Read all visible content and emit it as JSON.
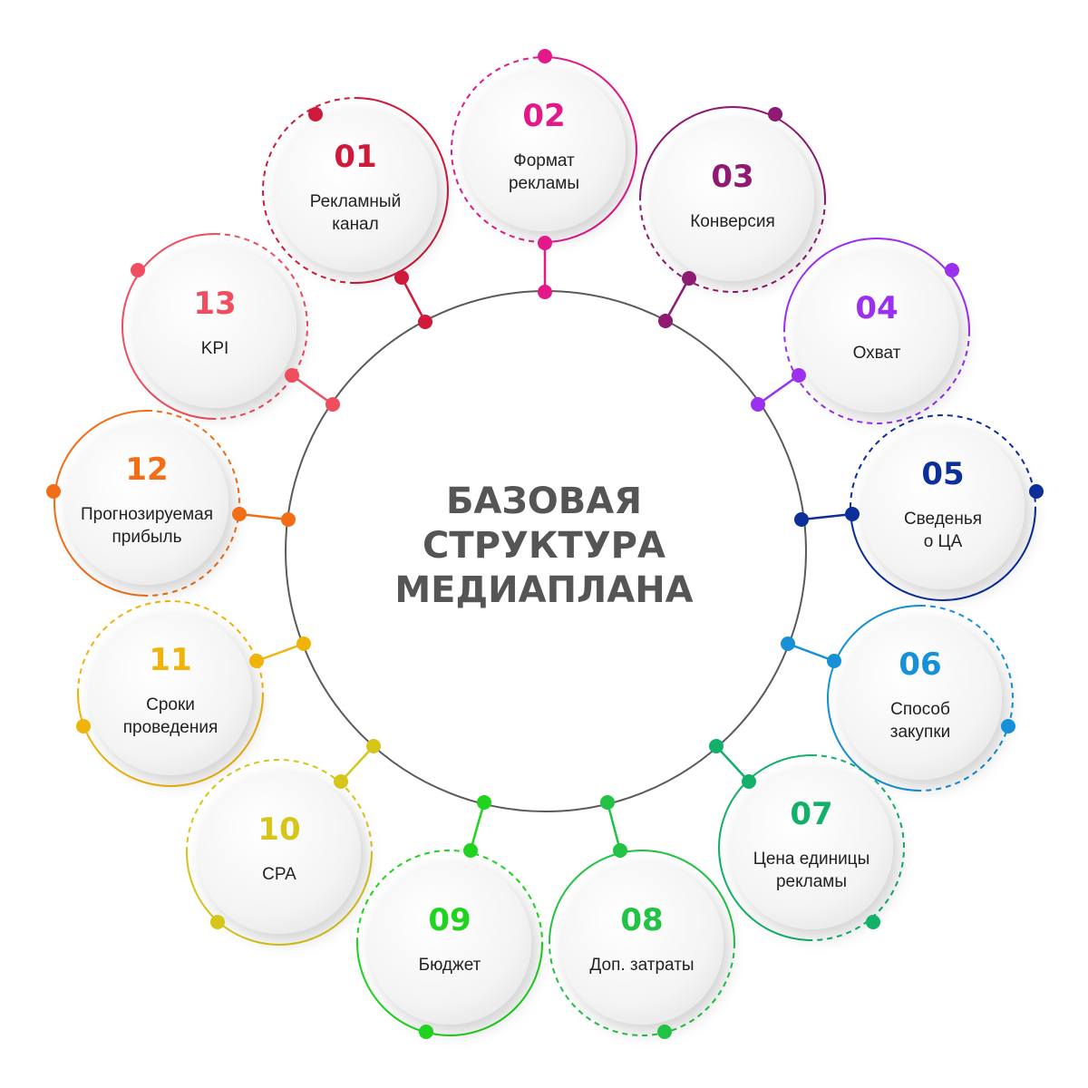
{
  "title": {
    "lines": [
      "БАЗОВАЯ",
      "СТРУКТУРА",
      "МЕДИАПЛАНА"
    ]
  },
  "colors": {
    "center_ring": "#5a5a5a",
    "title": "#555555",
    "label": "#222222",
    "bubble_fill": "#f1f1f1"
  },
  "nodes": [
    {
      "number": "01",
      "lines": [
        "Рекламный",
        "канал"
      ],
      "color": "#d01a3b"
    },
    {
      "number": "02",
      "lines": [
        "Формат",
        "рекламы"
      ],
      "color": "#e3198a"
    },
    {
      "number": "03",
      "lines": [
        "Конверсия"
      ],
      "color": "#8e1a72"
    },
    {
      "number": "04",
      "lines": [
        "Охват"
      ],
      "color": "#9b30f0"
    },
    {
      "number": "05",
      "lines": [
        "Сведенья",
        "о ЦА"
      ],
      "color": "#0c2f9a"
    },
    {
      "number": "06",
      "lines": [
        "Способ",
        "закупки"
      ],
      "color": "#1690d6"
    },
    {
      "number": "07",
      "lines": [
        "Цена единицы",
        "рекламы"
      ],
      "color": "#13b06a"
    },
    {
      "number": "08",
      "lines": [
        "Доп. затраты"
      ],
      "color": "#22c244"
    },
    {
      "number": "09",
      "lines": [
        "Бюджет"
      ],
      "color": "#1fd31f"
    },
    {
      "number": "10",
      "lines": [
        "CPA"
      ],
      "color": "#d6c51b"
    },
    {
      "number": "11",
      "lines": [
        "Сроки",
        "проведения"
      ],
      "color": "#f0b30a"
    },
    {
      "number": "12",
      "lines": [
        "Прогнозируемая",
        "прибыль"
      ],
      "color": "#f26e16"
    },
    {
      "number": "13",
      "lines": [
        "KPI"
      ],
      "color": "#f04e5e"
    }
  ]
}
